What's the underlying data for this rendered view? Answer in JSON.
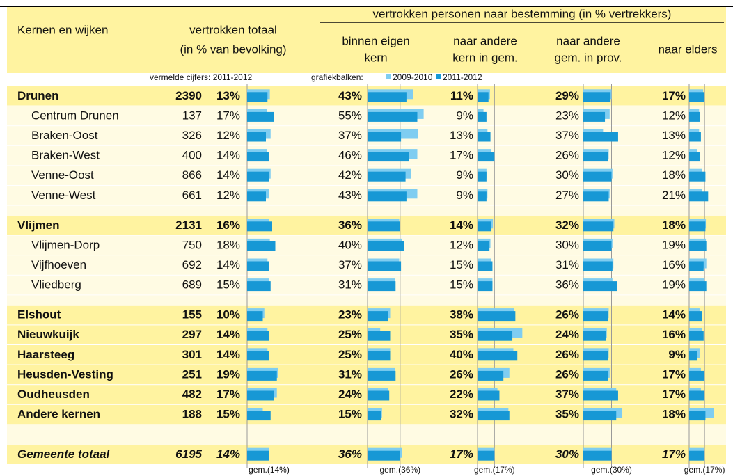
{
  "header": {
    "column_1": "Kernen en wijken",
    "column_2": [
      "vertrokken totaal",
      "(in % van bevolking)"
    ],
    "destination_group": "vertrokken personen naar bestemming (in % vertrekkers)",
    "destinations": [
      [
        "binnen eigen",
        "kern"
      ],
      [
        "naar andere",
        "kern in gem."
      ],
      [
        "naar andere",
        "gem. in prov."
      ],
      [
        "naar elders"
      ]
    ]
  },
  "notes": {
    "figures": "vermelde cijfers: 2011-2012",
    "bars": "grafiekbalken:"
  },
  "legend": [
    {
      "name": "2009-2010",
      "color": "#7fcdf1"
    },
    {
      "name": "2011-2012",
      "color": "#1798d5"
    }
  ],
  "table": {
    "groups": [
      {
        "rows": [
          {
            "name": "Drunen",
            "bold": true,
            "count": 2390,
            "values": [
              13,
              43,
              11,
              29,
              17
            ],
            "value_labels": [
              "13%",
              "43%",
              "11%",
              "29%",
              "17%"
            ],
            "previous": [
              14.5,
              50,
              12.5,
              30,
              15.5
            ]
          },
          {
            "name": "Centrum Drunen",
            "count": 137,
            "values": [
              17,
              55,
              9,
              23,
              12
            ],
            "value_labels": [
              "17%",
              "55%",
              "9%",
              "23%",
              "12%"
            ],
            "previous": [
              12.5,
              62,
              6,
              28,
              11
            ]
          },
          {
            "name": "Braken-Oost",
            "count": 326,
            "values": [
              12,
              37,
              13,
              37,
              13
            ],
            "value_labels": [
              "12%",
              "37%",
              "13%",
              "37%",
              "13%"
            ],
            "previous": [
              15,
              56,
              10,
              21,
              11
            ]
          },
          {
            "name": "Braken-West",
            "count": 400,
            "values": [
              14,
              46,
              17,
              26,
              12
            ],
            "value_labels": [
              "14%",
              "46%",
              "17%",
              "26%",
              "12%"
            ],
            "previous": [
              12.5,
              55,
              14,
              27,
              9
            ]
          },
          {
            "name": "Venne-Oost",
            "count": 866,
            "values": [
              14,
              42,
              9,
              30,
              18
            ],
            "value_labels": [
              "14%",
              "42%",
              "9%",
              "30%",
              "18%"
            ],
            "previous": [
              15,
              48,
              9,
              31,
              14
            ]
          },
          {
            "name": "Venne-West",
            "count": 661,
            "values": [
              12,
              43,
              9,
              27,
              21
            ],
            "value_labels": [
              "12%",
              "43%",
              "9%",
              "27%",
              "21%"
            ],
            "previous": [
              14,
              55,
              10,
              28,
              14
            ]
          }
        ]
      },
      {
        "rows": [
          {
            "name": "Vlijmen",
            "bold": true,
            "count": 2131,
            "values": [
              16,
              36,
              14,
              32,
              18
            ],
            "value_labels": [
              "16%",
              "36%",
              "14%",
              "32%",
              "18%"
            ],
            "previous": [
              14,
              35,
              15.5,
              33,
              18.5
            ]
          },
          {
            "name": "Vlijmen-Dorp",
            "count": 750,
            "values": [
              18,
              40,
              12,
              30,
              19
            ],
            "value_labels": [
              "18%",
              "40%",
              "12%",
              "30%",
              "19%"
            ],
            "previous": [
              14.5,
              38,
              13,
              31,
              18.5
            ]
          },
          {
            "name": "Vijfhoeven",
            "count": 692,
            "values": [
              14,
              37,
              15,
              31,
              16
            ],
            "value_labels": [
              "14%",
              "37%",
              "15%",
              "31%",
              "16%"
            ],
            "previous": [
              13,
              35,
              14,
              32,
              19
            ]
          },
          {
            "name": "Vliedberg",
            "count": 689,
            "values": [
              15,
              31,
              15,
              36,
              19
            ],
            "value_labels": [
              "15%",
              "31%",
              "15%",
              "36%",
              "19%"
            ],
            "previous": [
              14,
              30,
              15,
              31,
              17
            ]
          }
        ]
      },
      {
        "rows": [
          {
            "name": "Elshout",
            "bold": true,
            "count": 155,
            "values": [
              10,
              23,
              38,
              26,
              14
            ],
            "value_labels": [
              "10%",
              "23%",
              "38%",
              "26%",
              "14%"
            ],
            "previous": [
              11,
              25,
              37,
              27,
              11.5
            ]
          },
          {
            "name": "Nieuwkuijk",
            "bold": true,
            "count": 297,
            "values": [
              14,
              25,
              35,
              24,
              16
            ],
            "value_labels": [
              "14%",
              "25%",
              "35%",
              "24%",
              "16%"
            ],
            "previous": [
              13,
              14,
              45,
              25,
              14
            ]
          },
          {
            "name": "Haarsteeg",
            "bold": true,
            "count": 301,
            "values": [
              14,
              25,
              40,
              26,
              9
            ],
            "value_labels": [
              "14%",
              "25%",
              "40%",
              "26%",
              "9%"
            ],
            "previous": [
              13,
              25,
              36,
              27,
              11.5
            ]
          },
          {
            "name": "Heusden-Vesting",
            "bold": true,
            "count": 251,
            "values": [
              19,
              31,
              26,
              26,
              17
            ],
            "value_labels": [
              "19%",
              "31%",
              "26%",
              "26%",
              "17%"
            ],
            "previous": [
              20,
              30,
              32,
              28,
              13
            ]
          },
          {
            "name": "Oudheusden",
            "bold": true,
            "count": 482,
            "values": [
              17,
              24,
              22,
              37,
              17
            ],
            "value_labels": [
              "17%",
              "24%",
              "22%",
              "37%",
              "17%"
            ],
            "previous": [
              19,
              23,
              20,
              35,
              13
            ]
          },
          {
            "name": "Andere kernen",
            "bold": true,
            "count": 188,
            "values": [
              15,
              15,
              32,
              35,
              18
            ],
            "value_labels": [
              "15%",
              "15%",
              "32%",
              "35%",
              "18%"
            ],
            "previous": [
              10,
              16,
              31,
              41.5,
              27
            ]
          }
        ]
      },
      {
        "rows": [
          {
            "name": "Gemeente totaal",
            "bold": true,
            "italic": true,
            "count": 6195,
            "values": [
              14,
              36,
              17,
              30,
              17
            ],
            "value_labels": [
              "14%",
              "36%",
              "17%",
              "30%",
              "17%"
            ],
            "previous": [
              14,
              38,
              17,
              30,
              17
            ]
          }
        ]
      }
    ]
  },
  "averages": [
    14,
    36,
    17,
    30,
    17
  ],
  "average_labels": [
    "gem.(14%)",
    "gem.(36%)",
    "gem.(17%)",
    "gem.(30%)",
    "gem.(17%)"
  ]
}
